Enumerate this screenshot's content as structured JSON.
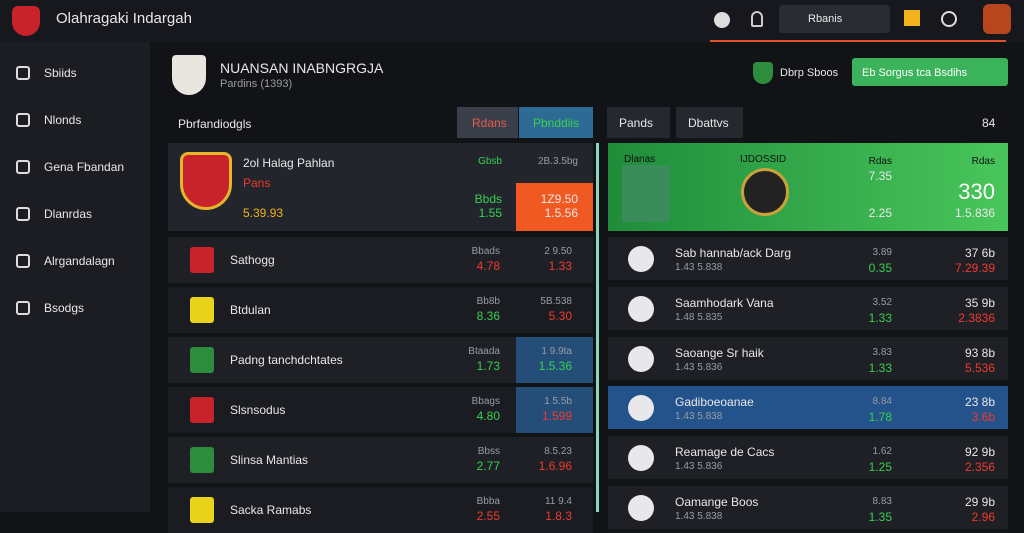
{
  "header": {
    "brand": "Olahragaki Indargah",
    "search": "Rbanis"
  },
  "sidebar": [
    "Sbiids",
    "Nlonds",
    "Gena Fbandan",
    "Dlanrdas",
    "Alrgandalagn",
    "Bsodgs"
  ],
  "page": {
    "title": "NUANSAN INABNGRGJA",
    "subtitle": "Pardins (1393)",
    "badge": "Dbrp Sboos",
    "button": "Eb Sorgus tca Bsdihs"
  },
  "left": {
    "label": "Pbrfandiodgls",
    "tabs": [
      "Rdans",
      "Pbnddiis"
    ],
    "featured": {
      "name": "2ol Halag Pahlan",
      "sub": "Pans",
      "value": "5.39.93",
      "col1": [
        "Gbsb",
        "Bbds",
        "1.55"
      ],
      "col2": [
        "2B.3.5bg",
        "1Z9.50",
        "1.5.56"
      ]
    },
    "rows": [
      [
        "Sathogg",
        "Bbads",
        "4.78",
        "2 9.50",
        "1.33"
      ],
      [
        "Btdulan",
        "Bb8b",
        "8.36",
        "5B.538",
        "5.30"
      ],
      [
        "Padng tanchdchtates",
        "Btaada",
        "1.73",
        "1 9.9ta",
        "1.5.36"
      ],
      [
        "Slsnsodus",
        "Bbags",
        "4.80",
        "1 5.5b",
        "1.599"
      ],
      [
        "Slinsa Mantias",
        "Bbss",
        "2.77",
        "8.5.23",
        "1.6.96"
      ],
      [
        "Sacka Ramabs",
        "Bbba",
        "2.55",
        "11 9.4",
        "1.8.3"
      ]
    ]
  },
  "right": {
    "tabs": [
      "Pands",
      "Dbattvs"
    ],
    "count": "84",
    "featured": {
      "label": "Dlanas",
      "crest": "IJDOSSID",
      "col1": [
        "Rdas",
        "7.35",
        "2.25"
      ],
      "col2": [
        "Rdas",
        "330",
        "1.5.836"
      ]
    },
    "rows": [
      [
        "Sab hannab/ack Darg",
        "1.43 5.838",
        "3.89",
        "0.35",
        "37 6b",
        "7.29.39"
      ],
      [
        "Saamhodark Vana",
        "1.48 5.835",
        "3.52",
        "1.33",
        "35 9b",
        "2.3836"
      ],
      [
        "Saoange Sr haik",
        "1.43 5.836",
        "3.83",
        "1.33",
        "93 8b",
        "5.536"
      ],
      [
        "Gadiboeoanae",
        "1.43 5.838",
        "8.84",
        "1.78",
        "23 8b",
        "3.6b"
      ],
      [
        "Reamage de Cacs",
        "1.43 5.836",
        "1.62",
        "1.25",
        "92 9b",
        "2.356"
      ],
      [
        "Oamange Boos",
        "1.43 5.838",
        "8.83",
        "1.35",
        "29 9b",
        "2.96"
      ]
    ]
  }
}
